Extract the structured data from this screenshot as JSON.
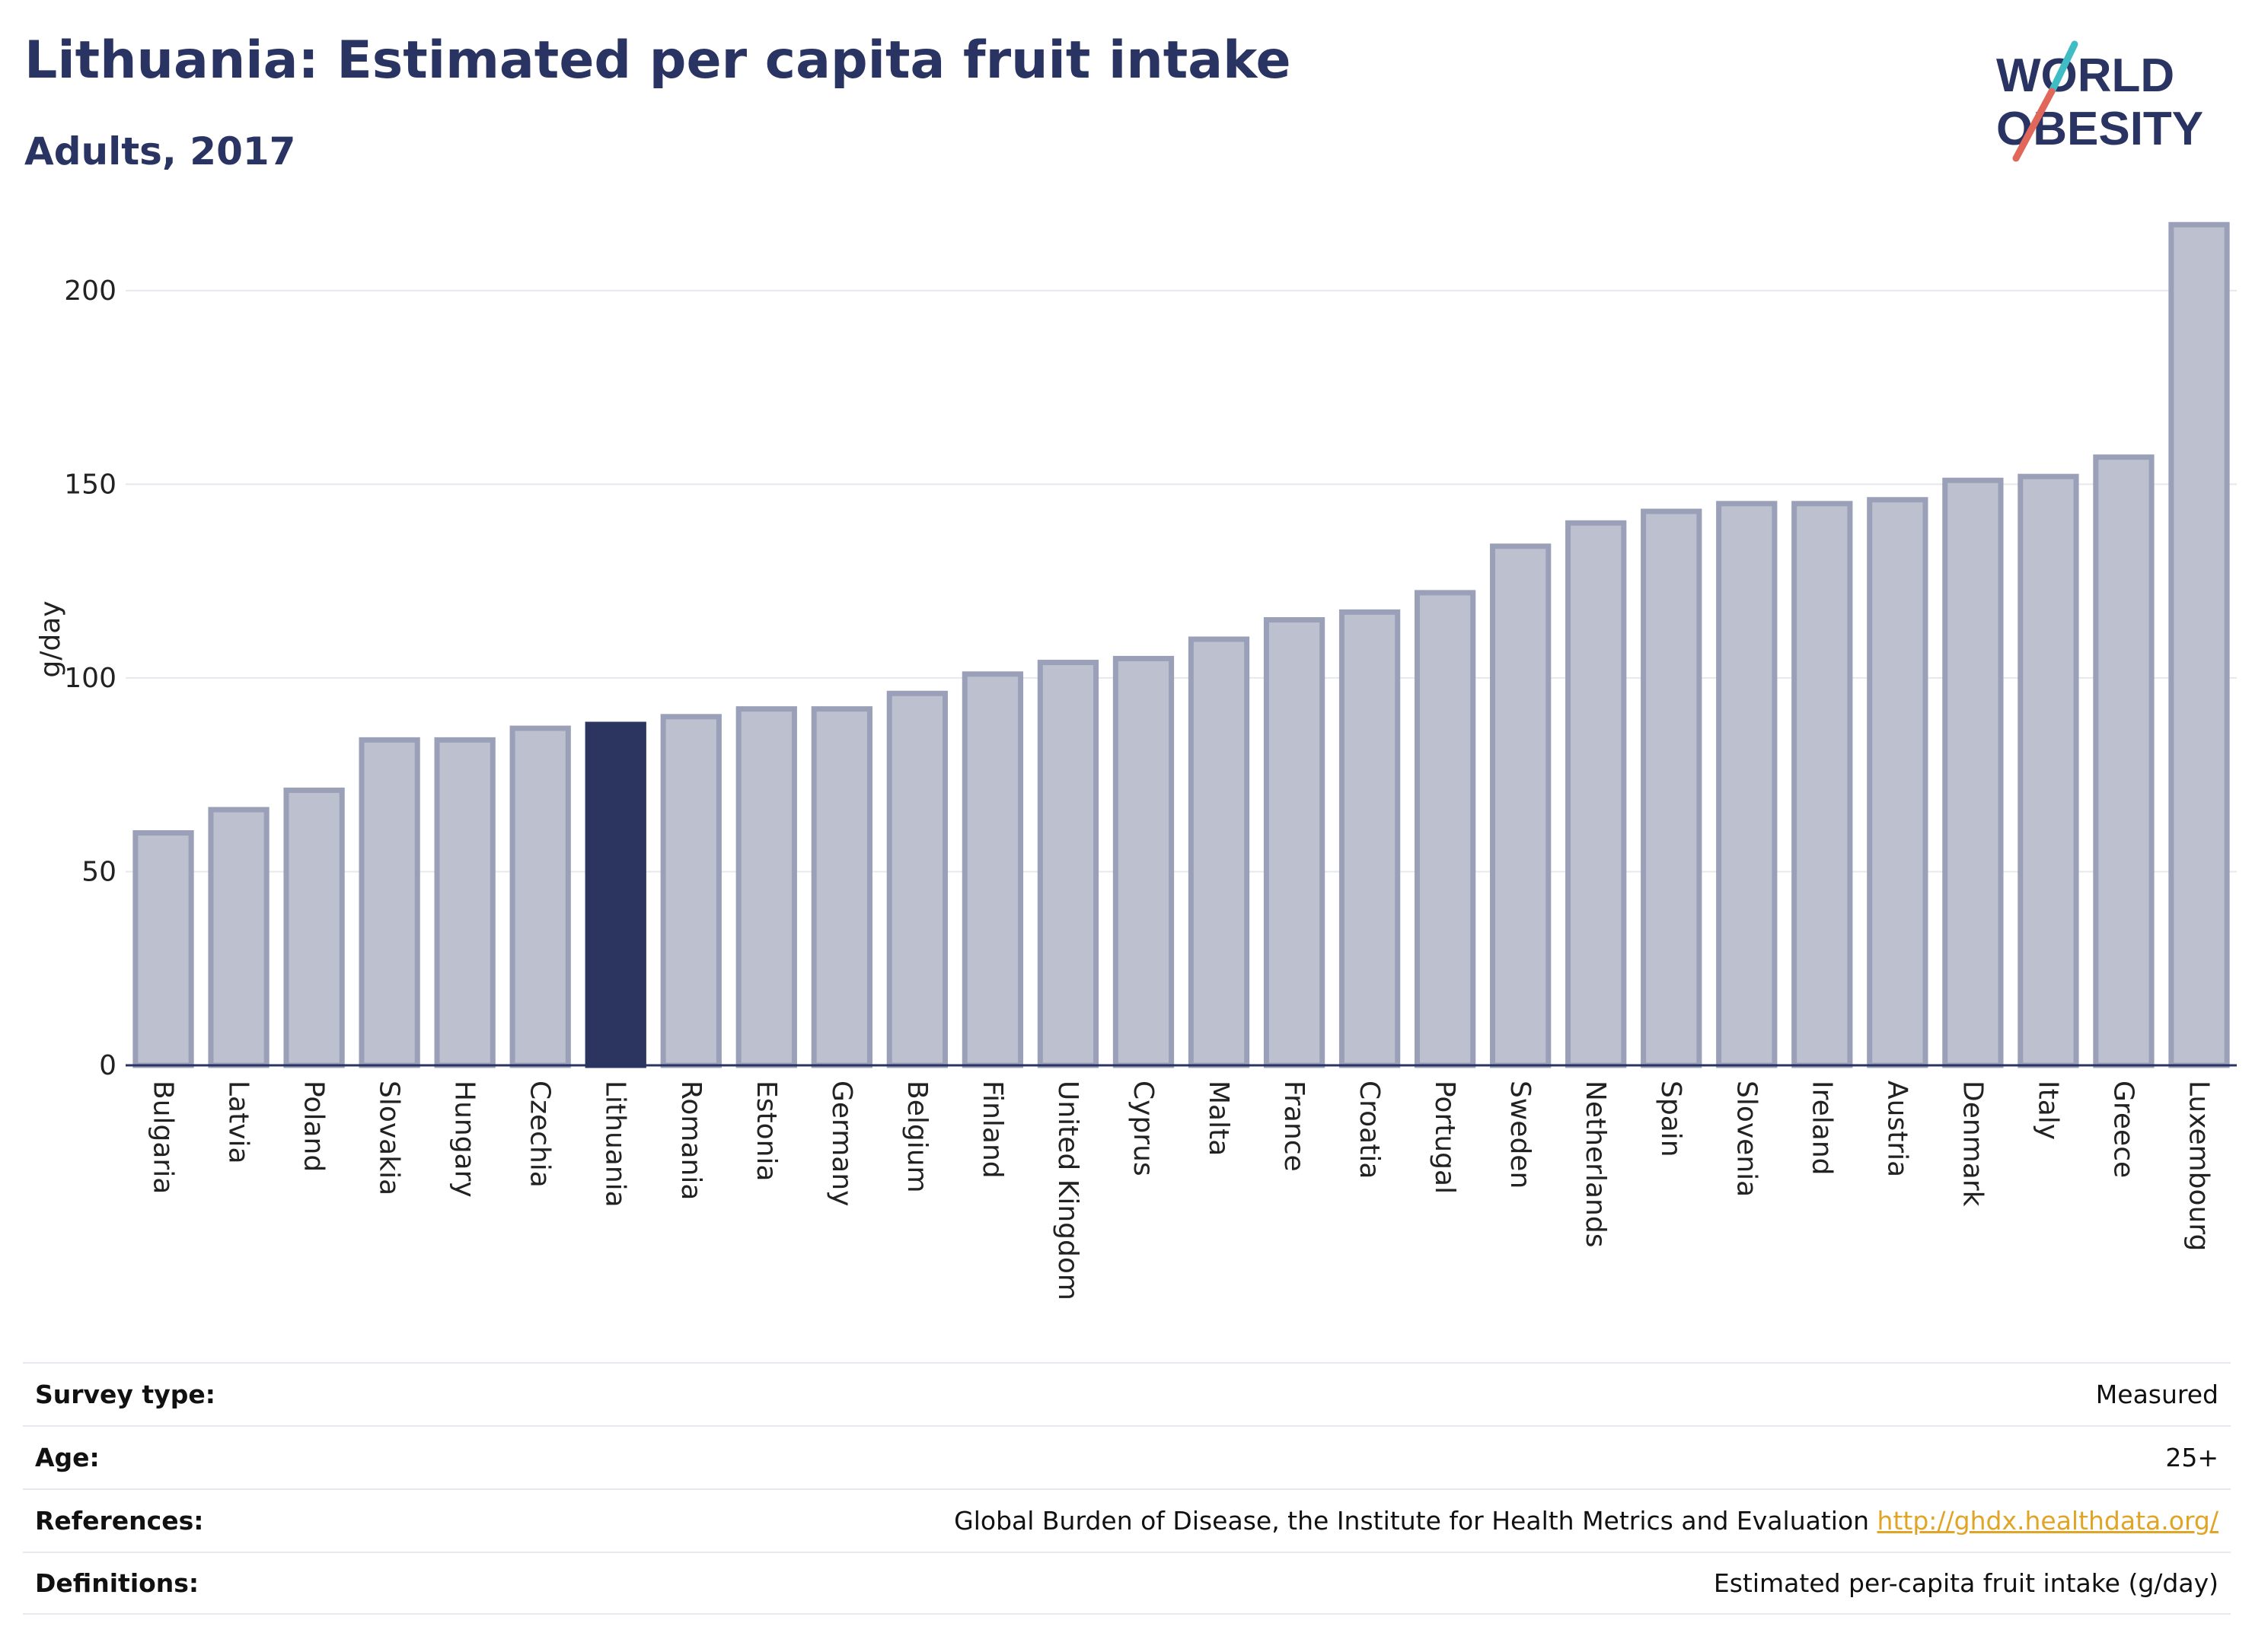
{
  "header": {
    "title": "Lithuania: Estimated per capita fruit intake",
    "subtitle": "Adults, 2017"
  },
  "logo": {
    "line1": "WORLD",
    "line2": "OBESITY",
    "colors": {
      "text": "#2a3462",
      "slash_teal": "#3fbcc4",
      "slash_red": "#e2675b"
    }
  },
  "chart_data": {
    "type": "bar",
    "title": "",
    "xlabel": "",
    "ylabel": "g/day",
    "ylim": [
      0,
      220
    ],
    "yticks": [
      0,
      50,
      100,
      150,
      200
    ],
    "grid": true,
    "highlight": "Lithuania",
    "colors": {
      "bar": "#bcc0cf",
      "bar_edge": "#9aa0b8",
      "highlight": "#2b355f",
      "axis": "#2a3462",
      "grid": "#e6e8ee"
    },
    "categories": [
      "Bulgaria",
      "Latvia",
      "Poland",
      "Slovakia",
      "Hungary",
      "Czechia",
      "Lithuania",
      "Romania",
      "Estonia",
      "Germany",
      "Belgium",
      "Finland",
      "United Kingdom",
      "Cyprus",
      "Malta",
      "France",
      "Croatia",
      "Portugal",
      "Sweden",
      "Netherlands",
      "Spain",
      "Slovenia",
      "Ireland",
      "Austria",
      "Denmark",
      "Italy",
      "Greece",
      "Luxembourg"
    ],
    "values": [
      60,
      66,
      71,
      84,
      84,
      87,
      88,
      90,
      92,
      92,
      96,
      101,
      104,
      105,
      110,
      115,
      117,
      122,
      134,
      140,
      143,
      145,
      145,
      146,
      151,
      152,
      157,
      217
    ]
  },
  "footer": {
    "rows": [
      {
        "label": "Survey type:",
        "value": "Measured"
      },
      {
        "label": "Age:",
        "value": "25+"
      },
      {
        "label": "References:",
        "value": "Global Burden of Disease, the Institute for Health Metrics and Evaluation ",
        "link": "http://ghdx.healthdata.org/"
      },
      {
        "label": "Definitions:",
        "value": "Estimated per-capita fruit intake (g/day)"
      }
    ]
  }
}
